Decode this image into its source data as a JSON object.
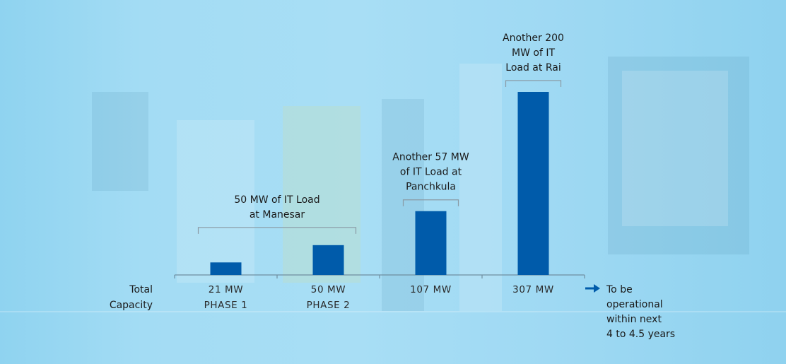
{
  "chart_data": {
    "type": "bar",
    "categories": [
      "PHASE 1",
      "PHASE 2",
      "",
      ""
    ],
    "values": [
      21,
      50,
      107,
      307
    ],
    "value_labels": [
      "21 MW",
      "50 MW",
      "107 MW",
      "307 MW"
    ],
    "ylim": [
      0,
      307
    ],
    "bar_color": "#005baa",
    "row_label": [
      "Total",
      "Capacity"
    ],
    "annotations": [
      {
        "lines": [
          "50 MW of IT Load",
          "at Manesar"
        ],
        "spans": [
          0,
          1
        ]
      },
      {
        "lines": [
          "Another 57 MW",
          "of IT Load at",
          "Panchkula"
        ],
        "spans": [
          2,
          2
        ]
      },
      {
        "lines": [
          "Another 200",
          "MW of IT",
          "Load at Rai"
        ],
        "spans": [
          3,
          3
        ]
      }
    ],
    "note": {
      "arrow_color": "#005baa",
      "lines": [
        "To be",
        "operational",
        "within next",
        "4 to 4.5 years"
      ]
    },
    "grid": false,
    "legend": "none"
  }
}
